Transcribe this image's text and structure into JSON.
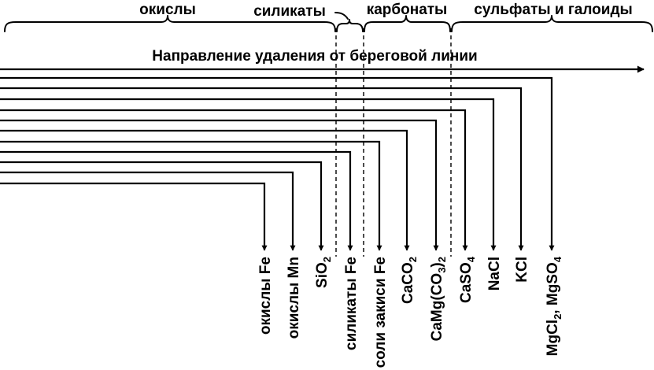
{
  "groups": [
    {
      "id": "oxides",
      "label": "окислы"
    },
    {
      "id": "silicates",
      "label": "силикаты"
    },
    {
      "id": "carbonates",
      "label": "карбонаты"
    },
    {
      "id": "sulfates",
      "label": "сульфаты и галоиды"
    }
  ],
  "direction_label": "Направление удаления от береговой линии",
  "components": [
    {
      "id": "fe-oxides",
      "label": "окислы Fe"
    },
    {
      "id": "mn-oxides",
      "label": "окислы Mn"
    },
    {
      "id": "sio2",
      "label": "SiO",
      "sub": "2"
    },
    {
      "id": "fe-silicates",
      "label": "силикаты Fe"
    },
    {
      "id": "ferrous-salts",
      "label": "соли закиси Fe"
    },
    {
      "id": "caco3",
      "label": "CaCO",
      "sub": "2"
    },
    {
      "id": "camg",
      "label": "CaMg(CO",
      "sub": "3",
      "tail": ")",
      "sub2": "2"
    },
    {
      "id": "caso4",
      "label": "CaSO",
      "sub": "4"
    },
    {
      "id": "nacl",
      "label": "NaCl"
    },
    {
      "id": "kcl",
      "label": "KCl"
    },
    {
      "id": "mgcl2",
      "label": "MgCl",
      "sub": "2",
      "tail": ", MgSO",
      "sub2": "4"
    }
  ]
}
